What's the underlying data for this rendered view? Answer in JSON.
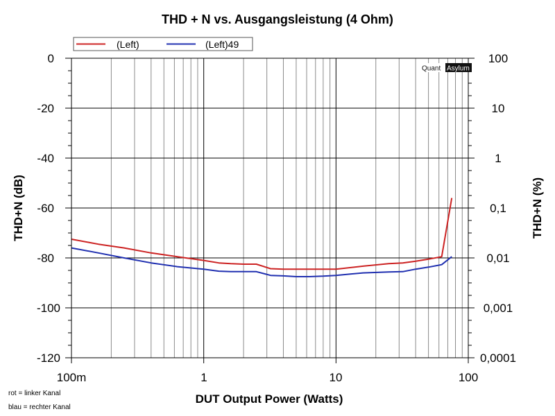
{
  "chart_data": {
    "type": "line",
    "title": "THD + N vs. Ausgangsleistung (4 Ohm)",
    "xlabel": "DUT Output Power (Watts)",
    "ylabel": "THD+N (dB)",
    "y2label": "THD+N (%)",
    "x_scale": "log",
    "xlim": [
      0.1,
      100
    ],
    "ylim": [
      -120,
      0
    ],
    "x_tick_values": [
      0.1,
      1,
      10,
      100
    ],
    "x_tick_labels": [
      "100m",
      "1",
      "10",
      "100"
    ],
    "y_tick_values": [
      0,
      -20,
      -40,
      -60,
      -80,
      -100,
      -120
    ],
    "y_tick_labels": [
      "0",
      "-20",
      "-40",
      "-60",
      "-80",
      "-100",
      "-120"
    ],
    "y2_tick_labels": [
      "100",
      "10",
      "1",
      "0,1",
      "0,01",
      "0,001",
      "0,0001"
    ],
    "grid": true,
    "legend_position": "top-left",
    "series": [
      {
        "name": "(Left)",
        "color": "#cc2222",
        "x": [
          0.1,
          0.16,
          0.25,
          0.4,
          0.63,
          1.0,
          1.3,
          1.6,
          2.0,
          2.5,
          3.2,
          4.0,
          5.0,
          6.3,
          8.0,
          10,
          16,
          25,
          32,
          40,
          50,
          63,
          75
        ],
        "y": [
          -72.5,
          -74.5,
          -76,
          -78,
          -79.5,
          -81,
          -82,
          -82.3,
          -82.5,
          -82.5,
          -84.3,
          -84.5,
          -84.5,
          -84.5,
          -84.5,
          -84.5,
          -83.3,
          -82.3,
          -82,
          -81.3,
          -80.5,
          -79.5,
          -56
        ]
      },
      {
        "name": "(Left)49",
        "color": "#1f2fb0",
        "x": [
          0.1,
          0.16,
          0.25,
          0.4,
          0.63,
          1.0,
          1.3,
          1.6,
          2.0,
          2.5,
          3.2,
          4.0,
          5.0,
          6.3,
          8.0,
          10,
          16,
          25,
          32,
          40,
          50,
          63,
          75
        ],
        "y": [
          -76,
          -78,
          -80,
          -82,
          -83.5,
          -84.5,
          -85.3,
          -85.5,
          -85.5,
          -85.5,
          -87,
          -87.2,
          -87.5,
          -87.5,
          -87.3,
          -87,
          -86,
          -85.6,
          -85.5,
          -84.5,
          -83.7,
          -82.7,
          -79.5
        ]
      }
    ]
  },
  "legend": {
    "items": [
      {
        "label": "(Left)",
        "color": "#cc2222"
      },
      {
        "label": "(Left)49",
        "color": "#1f2fb0"
      }
    ]
  },
  "brand": {
    "part1": "Quant",
    "part2": "Asylum"
  },
  "notes": {
    "line1": "rot = linker Kanal",
    "line2": "blau = rechter Kanal"
  }
}
